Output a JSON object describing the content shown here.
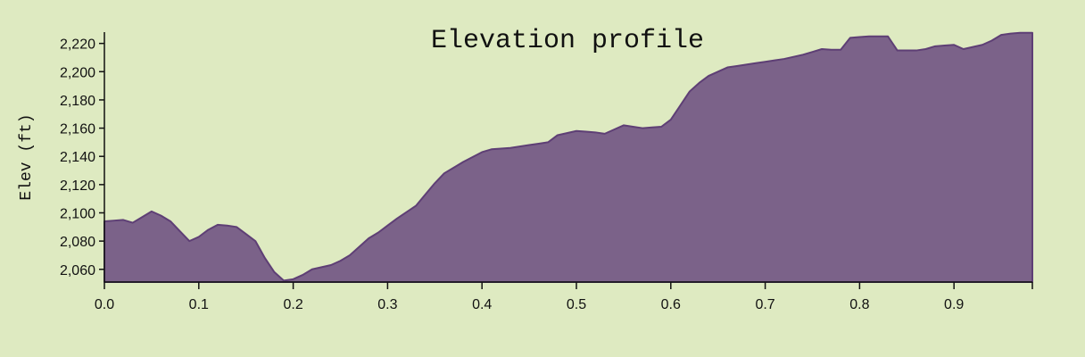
{
  "colors": {
    "background": "#deeac1",
    "area_fill": "#7b6289",
    "area_stroke": "#5e3f75"
  },
  "chart_data": {
    "type": "area",
    "title": "Elevation profile",
    "xlabel": "",
    "ylabel": "Elev (ft)",
    "xlim": [
      0.0,
      0.983
    ],
    "ylim": [
      2051,
      2228
    ],
    "grid": false,
    "x_ticks": [
      0.0,
      0.1,
      0.2,
      0.3,
      0.4,
      0.5,
      0.6,
      0.7,
      0.8,
      0.9
    ],
    "x_tick_labels": [
      "0.0",
      "0.1",
      "0.2",
      "0.3",
      "0.4",
      "0.5",
      "0.6",
      "0.7",
      "0.8",
      "0.9"
    ],
    "y_ticks": [
      2060,
      2080,
      2100,
      2120,
      2140,
      2160,
      2180,
      2200,
      2220
    ],
    "y_tick_labels": [
      "2,060",
      "2,080",
      "2,100",
      "2,120",
      "2,140",
      "2,160",
      "2,180",
      "2,200",
      "2,220"
    ],
    "series": [
      {
        "x": [
          0.0,
          0.01,
          0.02,
          0.03,
          0.04,
          0.05,
          0.06,
          0.07,
          0.08,
          0.09,
          0.1,
          0.11,
          0.12,
          0.13,
          0.14,
          0.15,
          0.16,
          0.17,
          0.18,
          0.19,
          0.2,
          0.21,
          0.22,
          0.23,
          0.24,
          0.25,
          0.26,
          0.27,
          0.28,
          0.29,
          0.3,
          0.31,
          0.32,
          0.33,
          0.34,
          0.35,
          0.36,
          0.37,
          0.38,
          0.39,
          0.4,
          0.41,
          0.42,
          0.43,
          0.44,
          0.45,
          0.46,
          0.47,
          0.48,
          0.49,
          0.5,
          0.51,
          0.52,
          0.53,
          0.54,
          0.55,
          0.56,
          0.57,
          0.58,
          0.59,
          0.6,
          0.61,
          0.62,
          0.63,
          0.64,
          0.65,
          0.66,
          0.67,
          0.68,
          0.69,
          0.7,
          0.71,
          0.72,
          0.73,
          0.74,
          0.75,
          0.76,
          0.77,
          0.78,
          0.79,
          0.8,
          0.81,
          0.82,
          0.83,
          0.84,
          0.85,
          0.86,
          0.87,
          0.88,
          0.89,
          0.9,
          0.91,
          0.92,
          0.93,
          0.94,
          0.95,
          0.96,
          0.97,
          0.983
        ],
        "values": [
          2094,
          2094.5,
          2095,
          2093,
          2097,
          2101,
          2098,
          2094,
          2087,
          2080,
          2083,
          2088,
          2091.5,
          2091,
          2090,
          2085,
          2080,
          2068,
          2058,
          2052,
          2053,
          2056,
          2060,
          2061.5,
          2063,
          2066,
          2070,
          2076,
          2082,
          2086,
          2091,
          2096,
          2100.5,
          2105,
          2113,
          2121,
          2128,
          2132,
          2136,
          2139.5,
          2143,
          2145,
          2145.5,
          2146,
          2147,
          2148,
          2149,
          2150,
          2155,
          2156.5,
          2158,
          2157.5,
          2157,
          2156,
          2159,
          2162,
          2161,
          2160,
          2160.5,
          2161,
          2166,
          2176,
          2186,
          2192,
          2197,
          2200,
          2203,
          2204,
          2205,
          2206,
          2207,
          2208,
          2209,
          2210.5,
          2212,
          2214,
          2216,
          2215.5,
          2215.5,
          2224,
          2224.5,
          2225,
          2225,
          2225,
          2215,
          2215,
          2215,
          2216,
          2218,
          2218.5,
          2219,
          2216,
          2217.5,
          2219,
          2222,
          2226,
          2227,
          2227.5,
          2227.5
        ]
      }
    ]
  }
}
